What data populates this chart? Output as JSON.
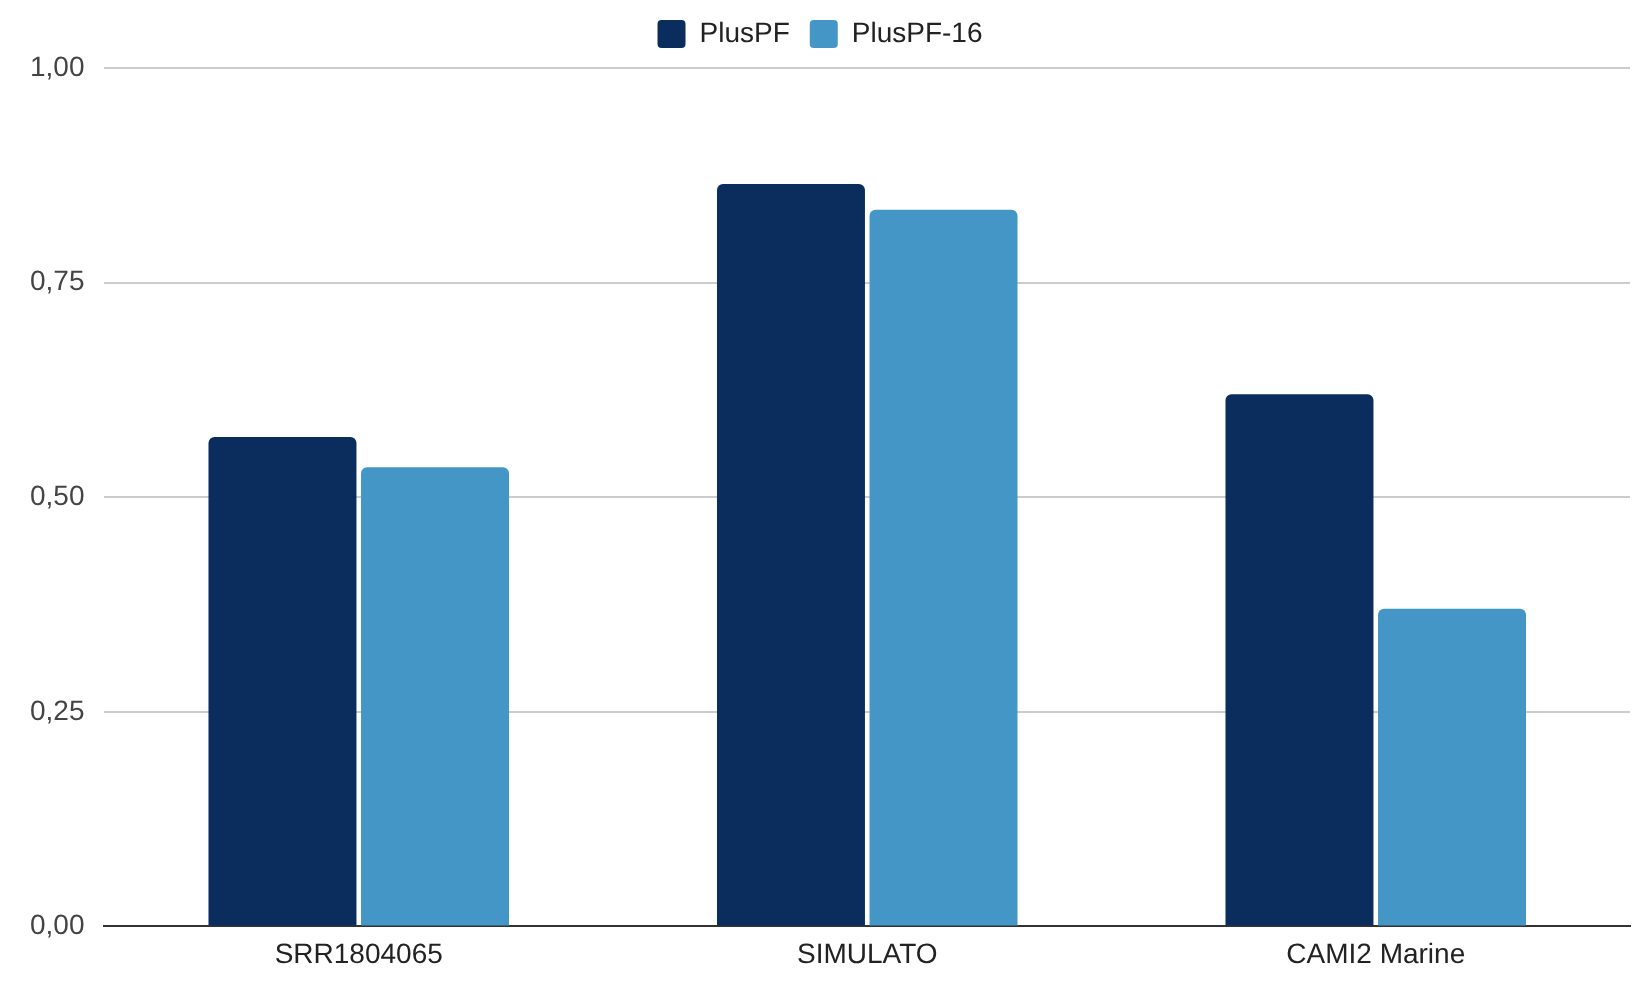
{
  "chart_data": {
    "type": "bar",
    "categories": [
      "SRR1804065",
      "SIMULATO",
      "CAMI2 Marine"
    ],
    "series": [
      {
        "name": "PlusPF",
        "color": "#0b2d5e",
        "values": [
          0.57,
          0.865,
          0.62
        ]
      },
      {
        "name": "PlusPF-16",
        "color": "#4496c6",
        "values": [
          0.535,
          0.835,
          0.37
        ]
      }
    ],
    "ylim": [
      0,
      1
    ],
    "yticks": [
      {
        "value": 0,
        "label": "0,00"
      },
      {
        "value": 0.25,
        "label": "0,25"
      },
      {
        "value": 0.5,
        "label": "0,50"
      },
      {
        "value": 0.75,
        "label": "0,75"
      },
      {
        "value": 1,
        "label": "1,00"
      }
    ],
    "grid": "y",
    "legend": "top"
  }
}
